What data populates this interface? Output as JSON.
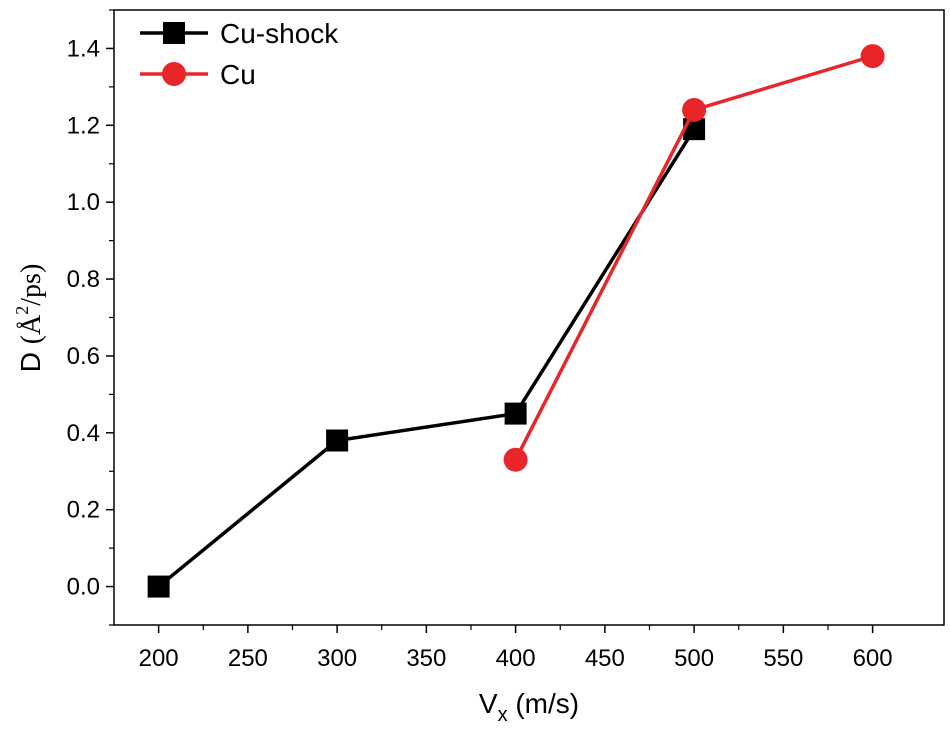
{
  "chart_data": {
    "type": "line",
    "title": "",
    "xlabel": {
      "main": "V",
      "sub": "x",
      "unit": " (m/s)"
    },
    "ylabel": {
      "main": "D ",
      "unit": "(Å",
      "sup": "2",
      "unit_end": "/ps)"
    },
    "xlim": [
      175,
      640
    ],
    "ylim": [
      -0.1,
      1.5
    ],
    "xticks": [
      200,
      250,
      300,
      350,
      400,
      450,
      500,
      550,
      600
    ],
    "xtick_labels": [
      "200",
      "250",
      "300",
      "350",
      "400",
      "450",
      "500",
      "550",
      "600"
    ],
    "yticks": [
      0.0,
      0.2,
      0.4,
      0.6,
      0.8,
      1.0,
      1.2,
      1.4
    ],
    "ytick_labels": [
      "0.0",
      "0.2",
      "0.4",
      "0.6",
      "0.8",
      "1.0",
      "1.2",
      "1.4"
    ],
    "legend_position": "top-left",
    "series": [
      {
        "name": "Cu-shock",
        "color": "#000000",
        "marker": "square",
        "x": [
          200,
          300,
          400,
          500
        ],
        "y": [
          0.0,
          0.38,
          0.45,
          1.19
        ]
      },
      {
        "name": "Cu",
        "color": "#e8262a",
        "marker": "circle",
        "x": [
          400,
          500,
          600
        ],
        "y": [
          0.33,
          1.24,
          1.38
        ]
      }
    ]
  }
}
